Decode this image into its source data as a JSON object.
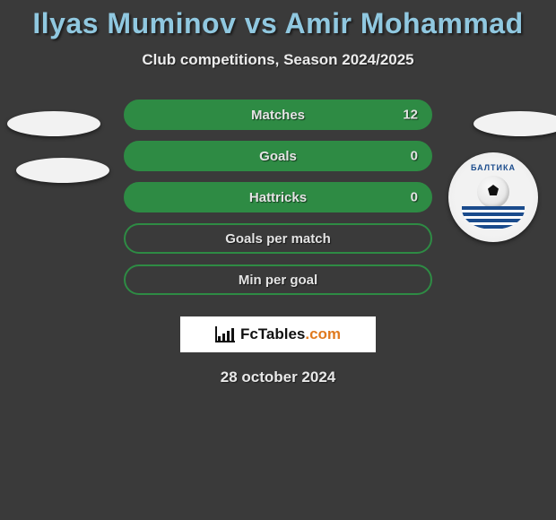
{
  "header": {
    "title": "Ilyas Muminov vs Amir Mohammad",
    "subtitle": "Club competitions, Season 2024/2025"
  },
  "stats": {
    "colors": {
      "pill_border": "#2e8b44",
      "pill_fill": "#2e8b44",
      "bg": "#3a3a3a",
      "title_color": "#90c8e0",
      "text_color": "#e4e4e4"
    },
    "rows": [
      {
        "label": "Matches",
        "left": "",
        "right": "12",
        "filled": true
      },
      {
        "label": "Goals",
        "left": "",
        "right": "0",
        "filled": true
      },
      {
        "label": "Hattricks",
        "left": "",
        "right": "0",
        "filled": true
      },
      {
        "label": "Goals per match",
        "left": "",
        "right": "",
        "filled": false
      },
      {
        "label": "Min per goal",
        "left": "",
        "right": "",
        "filled": false
      }
    ]
  },
  "branding": {
    "site": "FcTables",
    "tld": ".com"
  },
  "footer": {
    "date": "28 october 2024"
  },
  "club": {
    "arc": "БАЛТИКА"
  }
}
